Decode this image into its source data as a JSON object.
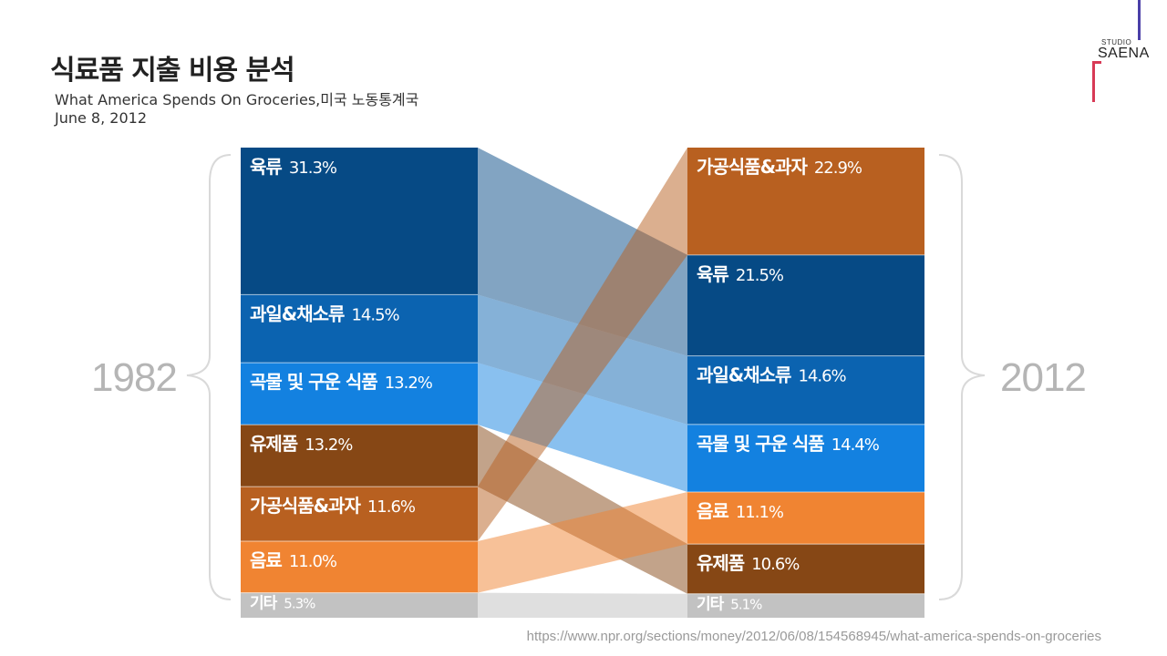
{
  "header": {
    "title": "식료품 지출 비용 분석",
    "subtitle": "What America Spends On Groceries,미국 노동통계국",
    "date": "June 8, 2012"
  },
  "logo": {
    "studio": "STUDIO",
    "name": "SAENA"
  },
  "source": "https://www.npr.org/sections/money/2012/06/08/154568945/what-america-spends-on-groceries",
  "colors": {
    "meat": "#064a85",
    "fruitveg": "#0b63b0",
    "grain": "#1381e0",
    "dairy": "#864715",
    "processed": "#b86020",
    "drinks": "#f08432",
    "other": "#c2c2c2",
    "year": "#b5b5b5"
  },
  "chart_data": {
    "type": "stacked-bar-comparison",
    "title": "식료품 지출 비용 분석",
    "categories": [
      "1982",
      "2012"
    ],
    "years": {
      "left": "1982",
      "right": "2012"
    },
    "unit": "%",
    "series_1982": [
      {
        "key": "meat",
        "name": "육류",
        "value": 31.3,
        "label": "31.3%"
      },
      {
        "key": "fruitveg",
        "name": "과일&채소류",
        "value": 14.5,
        "label": "14.5%"
      },
      {
        "key": "grain",
        "name": "곡물 및 구운 식품",
        "value": 13.2,
        "label": "13.2%"
      },
      {
        "key": "dairy",
        "name": "유제품",
        "value": 13.2,
        "label": "13.2%"
      },
      {
        "key": "processed",
        "name": "가공식품&과자",
        "value": 11.6,
        "label": "11.6%"
      },
      {
        "key": "drinks",
        "name": "음료",
        "value": 11.0,
        "label": "11.0%"
      },
      {
        "key": "other",
        "name": "기타",
        "value": 5.3,
        "label": "5.3%"
      }
    ],
    "series_2012": [
      {
        "key": "processed",
        "name": "가공식품&과자",
        "value": 22.9,
        "label": "22.9%"
      },
      {
        "key": "meat",
        "name": "육류",
        "value": 21.5,
        "label": "21.5%"
      },
      {
        "key": "fruitveg",
        "name": "과일&채소류",
        "value": 14.6,
        "label": "14.6%"
      },
      {
        "key": "grain",
        "name": "곡물 및 구운 식품",
        "value": 14.4,
        "label": "14.4%"
      },
      {
        "key": "drinks",
        "name": "음료",
        "value": 11.1,
        "label": "11.1%"
      },
      {
        "key": "dairy",
        "name": "유제품",
        "value": 10.6,
        "label": "10.6%"
      },
      {
        "key": "other",
        "name": "기타",
        "value": 5.1,
        "label": "5.1%"
      }
    ]
  }
}
